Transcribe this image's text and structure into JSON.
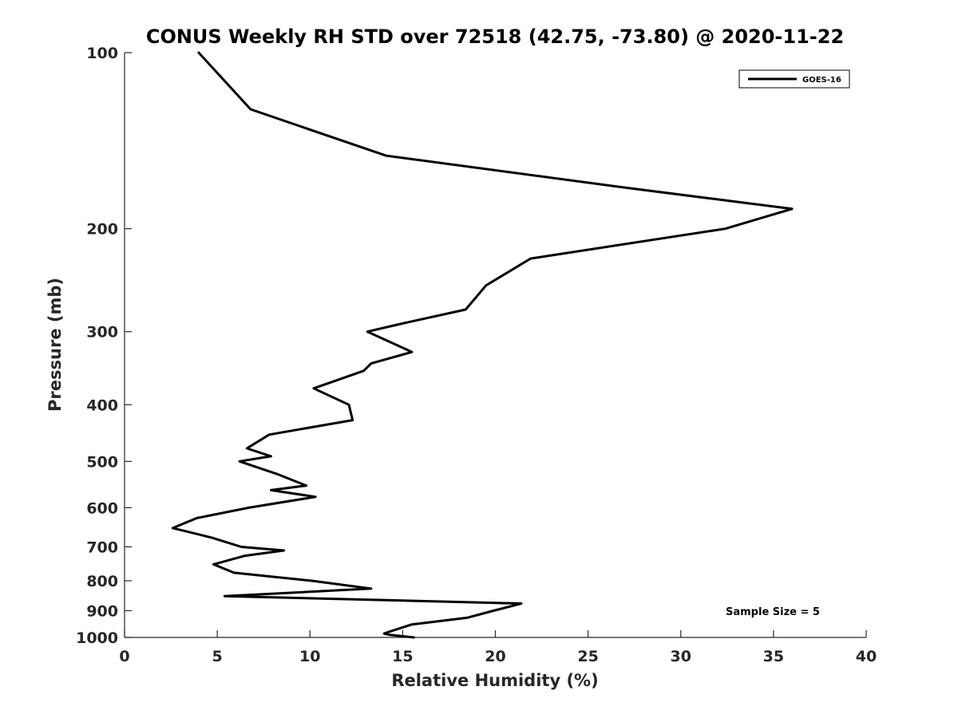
{
  "chart_data": {
    "type": "line",
    "title": "CONUS Weekly RH STD over 72518 (42.75, -73.80) @ 2020-11-22",
    "xlabel": "Relative Humidity (%)",
    "ylabel": "Pressure (mb)",
    "xlim": [
      0,
      40
    ],
    "ylim": [
      100,
      1000
    ],
    "y_scale": "log",
    "y_reversed": true,
    "grid": false,
    "legend_position": "top-right",
    "x_ticks": [
      0,
      5,
      10,
      15,
      20,
      25,
      30,
      35,
      40
    ],
    "x_tick_labels": [
      "0",
      "5",
      "10",
      "15",
      "20",
      "25",
      "30",
      "35",
      "40"
    ],
    "y_ticks": [
      100,
      200,
      300,
      400,
      500,
      600,
      700,
      800,
      900,
      1000
    ],
    "y_tick_labels": [
      "100",
      "200",
      "300",
      "400",
      "500",
      "600",
      "700",
      "800",
      "900",
      "1000"
    ],
    "series": [
      {
        "name": "GOES-16",
        "color": "#000000",
        "points": [
          [
            4.0,
            100
          ],
          [
            6.8,
            125
          ],
          [
            14.1,
            150
          ],
          [
            26.9,
            170
          ],
          [
            36.0,
            185
          ],
          [
            32.4,
            200
          ],
          [
            21.9,
            225
          ],
          [
            19.5,
            250
          ],
          [
            18.4,
            275
          ],
          [
            15.1,
            290
          ],
          [
            13.1,
            300
          ],
          [
            15.5,
            325
          ],
          [
            13.3,
            340
          ],
          [
            12.9,
            350
          ],
          [
            10.2,
            375
          ],
          [
            12.1,
            400
          ],
          [
            12.3,
            425
          ],
          [
            7.8,
            450
          ],
          [
            6.6,
            475
          ],
          [
            7.9,
            490
          ],
          [
            6.2,
            500
          ],
          [
            8.2,
            525
          ],
          [
            9.8,
            550
          ],
          [
            7.9,
            560
          ],
          [
            10.3,
            575
          ],
          [
            6.7,
            600
          ],
          [
            3.9,
            625
          ],
          [
            2.6,
            650
          ],
          [
            4.7,
            675
          ],
          [
            6.3,
            700
          ],
          [
            8.6,
            710
          ],
          [
            6.5,
            725
          ],
          [
            4.8,
            750
          ],
          [
            5.9,
            775
          ],
          [
            10.1,
            800
          ],
          [
            13.3,
            825
          ],
          [
            5.4,
            850
          ],
          [
            21.4,
            875
          ],
          [
            19.9,
            900
          ],
          [
            18.5,
            925
          ],
          [
            15.5,
            950
          ],
          [
            14.4,
            975
          ],
          [
            14.0,
            985
          ],
          [
            14.3,
            990
          ],
          [
            15.6,
            1000
          ]
        ]
      }
    ],
    "annotations": [
      "Sample Size = 5"
    ]
  }
}
